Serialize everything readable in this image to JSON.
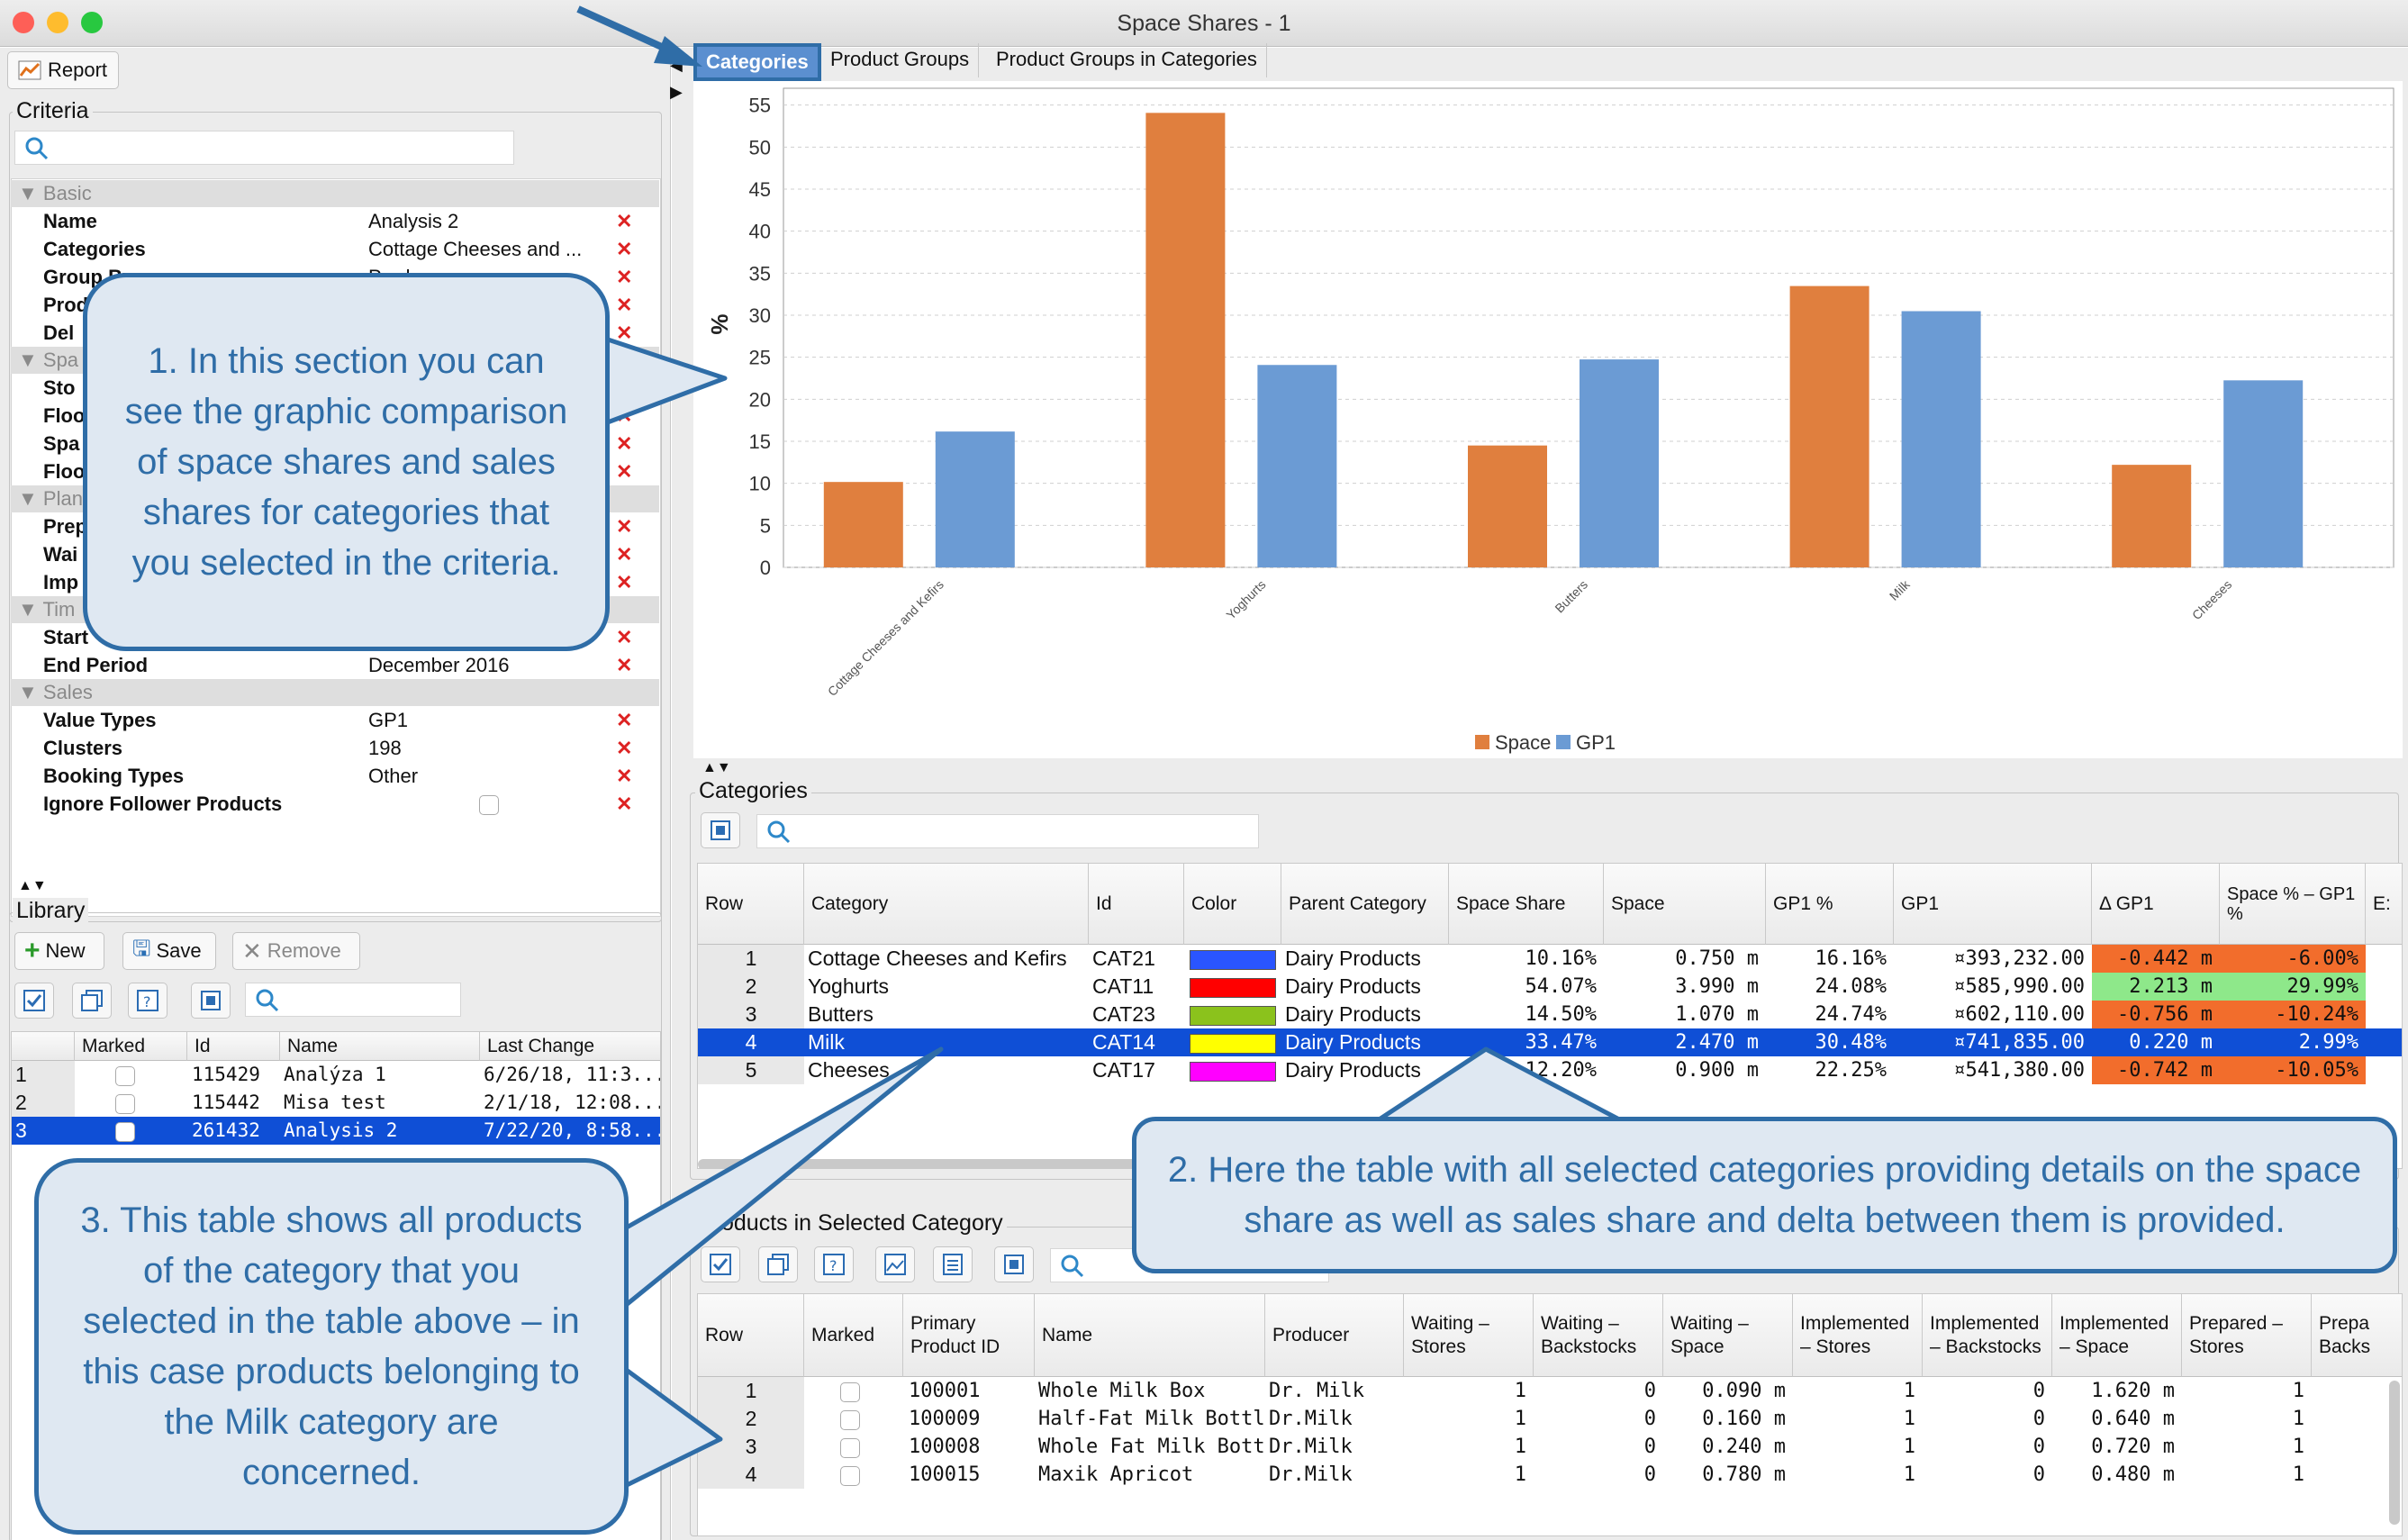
{
  "window": {
    "title": "Space Shares - 1"
  },
  "toolbar": {
    "report_label": "Report"
  },
  "criteria": {
    "title": "Criteria",
    "groups": {
      "basic": "Basic",
      "space": "Spa",
      "planning": "Plan",
      "time": "Tim",
      "sales": "Sales"
    },
    "rows": [
      {
        "key": "Name",
        "value": "Analysis 2"
      },
      {
        "key": "Categories",
        "value": "Cottage Cheeses and ..."
      },
      {
        "key": "Group By",
        "value": "Producer"
      },
      {
        "key": "Prod",
        "value": ""
      },
      {
        "key": "Del",
        "value": ""
      },
      {
        "key": "Sto",
        "value": ""
      },
      {
        "key": "Floo",
        "value": ""
      },
      {
        "key": "Spa",
        "value": ""
      },
      {
        "key": "Floo",
        "value": ""
      },
      {
        "key": "Prep",
        "value": ""
      },
      {
        "key": "Wai",
        "value": ""
      },
      {
        "key": "Imp",
        "value": ""
      },
      {
        "key": "Start",
        "value": ""
      },
      {
        "key": "End Period",
        "value": "December 2016"
      },
      {
        "key": "Value Types",
        "value": "GP1"
      },
      {
        "key": "Clusters",
        "value": "198"
      },
      {
        "key": "Booking Types",
        "value": "Other"
      },
      {
        "key": "Ignore Follower Products",
        "value": ""
      }
    ]
  },
  "library": {
    "title": "Library",
    "new_label": "New",
    "save_label": "Save",
    "remove_label": "Remove",
    "columns": [
      "Marked",
      "Id",
      "Name",
      "Last Change"
    ],
    "rows": [
      {
        "row": "1",
        "id": "115429",
        "name": "Analýza 1",
        "last_change": "6/26/18, 11:3..."
      },
      {
        "row": "2",
        "id": "115442",
        "name": "Misa test",
        "last_change": "2/1/18, 12:08..."
      },
      {
        "row": "3",
        "id": "261432",
        "name": "Analysis 2",
        "last_change": "7/22/20, 8:58..."
      }
    ]
  },
  "tabs": [
    "Categories",
    "Product Groups",
    "Product Groups in Categories"
  ],
  "chart_data": {
    "type": "bar",
    "categories": [
      "Cottage Cheeses and Kefirs",
      "Yoghurts",
      "Butters",
      "Milk",
      "Cheeses"
    ],
    "series": [
      {
        "name": "Space",
        "values": [
          10.16,
          54.07,
          14.5,
          33.47,
          12.2
        ],
        "color": "#e07f3e"
      },
      {
        "name": "GP1",
        "values": [
          16.16,
          24.08,
          24.74,
          30.48,
          22.25
        ],
        "color": "#6b9bd4"
      }
    ],
    "ylabel": "%",
    "ylim": [
      0,
      57
    ],
    "yticks": [
      "0",
      "5",
      "10",
      "15",
      "20",
      "25",
      "30",
      "35",
      "40",
      "45",
      "50",
      "55"
    ],
    "grid": true,
    "legend": "bottom"
  },
  "categories_table": {
    "title": "Categories",
    "columns": [
      "Row",
      "Category",
      "Id",
      "Color",
      "Parent Category",
      "Space Share",
      "Space",
      "GP1 %",
      "GP1",
      "Δ GP1",
      "Space % – GP1 %",
      "E:"
    ],
    "rows": [
      {
        "row": "1",
        "category": "Cottage Cheeses and Kefirs",
        "id": "CAT21",
        "color": "#2a55ff",
        "parent": "Dairy Products",
        "space_share": "10.16%",
        "space": "0.750 m",
        "gp1_pct": "16.16%",
        "gp1": "¤393,232.00",
        "delta_gp1": "-0.442 m",
        "space_minus_gp1": "-6.00%"
      },
      {
        "row": "2",
        "category": "Yoghurts",
        "id": "CAT11",
        "color": "#ff0000",
        "parent": "Dairy Products",
        "space_share": "54.07%",
        "space": "3.990 m",
        "gp1_pct": "24.08%",
        "gp1": "¤585,990.00",
        "delta_gp1": "2.213 m",
        "space_minus_gp1": "29.99%"
      },
      {
        "row": "3",
        "category": "Butters",
        "id": "CAT23",
        "color": "#8bc21c",
        "parent": "Dairy Products",
        "space_share": "14.50%",
        "space": "1.070 m",
        "gp1_pct": "24.74%",
        "gp1": "¤602,110.00",
        "delta_gp1": "-0.756 m",
        "space_minus_gp1": "-10.24%"
      },
      {
        "row": "4",
        "category": "Milk",
        "id": "CAT14",
        "color": "#ffff00",
        "parent": "Dairy Products",
        "space_share": "33.47%",
        "space": "2.470 m",
        "gp1_pct": "30.48%",
        "gp1": "¤741,835.00",
        "delta_gp1": "0.220 m",
        "space_minus_gp1": "2.99%"
      },
      {
        "row": "5",
        "category": "Cheeses",
        "id": "CAT17",
        "color": "#ff00ff",
        "parent": "Dairy Products",
        "space_share": "12.20%",
        "space": "0.900 m",
        "gp1_pct": "22.25%",
        "gp1": "¤541,380.00",
        "delta_gp1": "-0.742 m",
        "space_minus_gp1": "-10.05%"
      }
    ]
  },
  "products_table": {
    "title": "Products in Selected Category",
    "columns": [
      "Row",
      "Marked",
      "Primary Product ID",
      "Name",
      "Producer",
      "Waiting – Stores",
      "Waiting – Backstocks",
      "Waiting – Space",
      "Implemented – Stores",
      "Implemented – Backstocks",
      "Implemented – Space",
      "Prepared – Stores",
      "Prepa Backs"
    ],
    "rows": [
      {
        "row": "1",
        "id": "100001",
        "name": "Whole Milk Box",
        "producer": "Dr. Milk",
        "ws": "1",
        "wb": "0",
        "wsp": "0.090 m",
        "is": "1",
        "ib": "0",
        "isp": "1.620 m",
        "ps": "1"
      },
      {
        "row": "2",
        "id": "100009",
        "name": "Half-Fat Milk Bottle",
        "producer": "Dr.Milk",
        "ws": "1",
        "wb": "0",
        "wsp": "0.160 m",
        "is": "1",
        "ib": "0",
        "isp": "0.640 m",
        "ps": "1"
      },
      {
        "row": "3",
        "id": "100008",
        "name": "Whole Fat Milk Bottle",
        "producer": "Dr.Milk",
        "ws": "1",
        "wb": "0",
        "wsp": "0.240 m",
        "is": "1",
        "ib": "0",
        "isp": "0.720 m",
        "ps": "1"
      },
      {
        "row": "4",
        "id": "100015",
        "name": "Maxik Apricot",
        "producer": "Dr.Milk",
        "ws": "1",
        "wb": "0",
        "wsp": "0.780 m",
        "is": "1",
        "ib": "0",
        "isp": "0.480 m",
        "ps": "1"
      }
    ]
  },
  "callouts": {
    "one": "1. In this section you can see the graphic comparison of space shares and sales shares for categories that you selected in the criteria.",
    "two": "2. Here the table with all selected categories providing details on the space share as well as sales share and delta between them is provided.",
    "three": "3. This table shows all products of the category that you selected in the table above – in this case products belonging to the Milk category are concerned."
  },
  "colors": {
    "accent": "#2f6da7",
    "selection": "#0f4fd6",
    "negative": "#f26d2c",
    "positive": "#8ee88a"
  }
}
